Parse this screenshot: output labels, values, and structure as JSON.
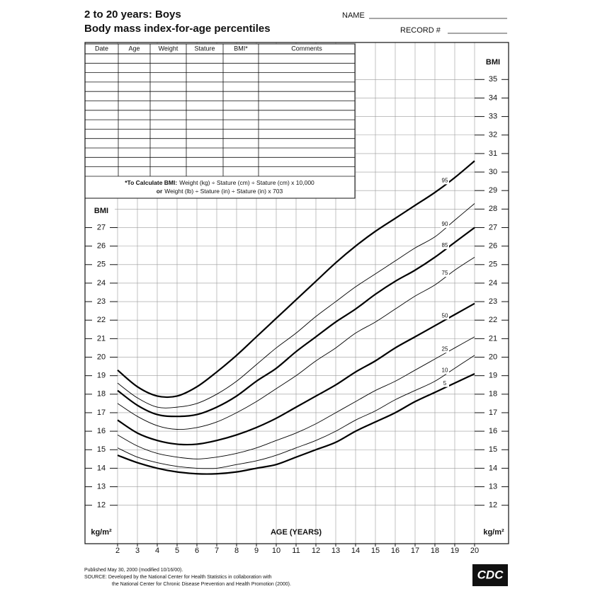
{
  "header": {
    "name_label": "NAME",
    "record_label": "RECORD #"
  },
  "table": {
    "columns": [
      "Date",
      "Age",
      "Weight",
      "Stature",
      "BMI*",
      "Comments"
    ],
    "note": [
      [
        "*To Calculate BMI:",
        "Weight (kg) ÷ Stature (cm) ÷ Stature (cm) x 10,000"
      ],
      [
        "or",
        "Weight (lb) ÷ Stature (in) ÷ Stature (in) x 703"
      ]
    ]
  },
  "footer": [
    "Published May 30, 2000 (modified 10/16/00).",
    "SOURCE: Developed by the National Center for Health Statistics in collaboration with",
    "the National Center for Chronic Disease Prevention and Health Promotion (2000)."
  ],
  "logo": "CDC",
  "chart_data": {
    "type": "line",
    "title": "2 to 20 years: Boys",
    "subtitle": "Body mass index-for-age percentiles",
    "x_label": "AGE (YEARS)",
    "y_label": "BMI",
    "y_unit": "kg/m²",
    "x": [
      2,
      3,
      4,
      5,
      6,
      7,
      8,
      9,
      10,
      11,
      12,
      13,
      14,
      15,
      16,
      17,
      18,
      19,
      20
    ],
    "xlim": [
      2,
      20
    ],
    "xticks": [
      2,
      3,
      4,
      5,
      6,
      7,
      8,
      9,
      10,
      11,
      12,
      13,
      14,
      15,
      16,
      17,
      18,
      19,
      20
    ],
    "ylim": [
      10,
      37
    ],
    "yticks": [
      12,
      13,
      14,
      15,
      16,
      17,
      18,
      19,
      20,
      21,
      22,
      23,
      24,
      25,
      26,
      27
    ],
    "y2lim": [
      10,
      37
    ],
    "y2ticks": [
      12,
      13,
      14,
      15,
      16,
      17,
      18,
      19,
      20,
      21,
      22,
      23,
      24,
      25,
      26,
      27,
      28,
      29,
      30,
      31,
      32,
      33,
      34,
      35
    ],
    "grid": true,
    "series": [
      {
        "name": "95",
        "color": "#000000",
        "line_width": 2.2,
        "values": [
          19.3,
          18.4,
          17.9,
          17.9,
          18.4,
          19.2,
          20.1,
          21.1,
          22.1,
          23.1,
          24.1,
          25.1,
          26.0,
          26.8,
          27.5,
          28.2,
          28.9,
          29.7,
          30.6
        ]
      },
      {
        "name": "90",
        "color": "#000000",
        "line_width": 0.9,
        "values": [
          18.6,
          17.8,
          17.3,
          17.3,
          17.5,
          18.0,
          18.7,
          19.6,
          20.5,
          21.3,
          22.2,
          23.0,
          23.8,
          24.5,
          25.2,
          25.9,
          26.5,
          27.4,
          28.3
        ]
      },
      {
        "name": "85",
        "color": "#000000",
        "line_width": 2.2,
        "values": [
          18.2,
          17.4,
          16.9,
          16.8,
          16.9,
          17.3,
          17.9,
          18.7,
          19.4,
          20.3,
          21.1,
          21.9,
          22.6,
          23.4,
          24.1,
          24.7,
          25.4,
          26.2,
          27.0
        ]
      },
      {
        "name": "75",
        "color": "#000000",
        "line_width": 0.9,
        "values": [
          17.5,
          16.8,
          16.3,
          16.1,
          16.2,
          16.5,
          17.0,
          17.6,
          18.3,
          19.0,
          19.8,
          20.5,
          21.3,
          21.9,
          22.6,
          23.3,
          23.9,
          24.7,
          25.4
        ]
      },
      {
        "name": "50",
        "color": "#000000",
        "line_width": 2.2,
        "values": [
          16.6,
          15.9,
          15.5,
          15.3,
          15.3,
          15.5,
          15.8,
          16.2,
          16.7,
          17.3,
          17.9,
          18.5,
          19.2,
          19.8,
          20.5,
          21.1,
          21.7,
          22.3,
          22.9
        ]
      },
      {
        "name": "25",
        "color": "#000000",
        "line_width": 0.9,
        "values": [
          15.8,
          15.2,
          14.8,
          14.6,
          14.5,
          14.6,
          14.8,
          15.1,
          15.5,
          15.9,
          16.4,
          17.0,
          17.6,
          18.2,
          18.7,
          19.3,
          19.9,
          20.5,
          21.1
        ]
      },
      {
        "name": "10",
        "color": "#000000",
        "line_width": 0.9,
        "values": [
          15.1,
          14.6,
          14.3,
          14.1,
          14.0,
          14.0,
          14.2,
          14.4,
          14.7,
          15.1,
          15.5,
          16.0,
          16.6,
          17.1,
          17.7,
          18.2,
          18.7,
          19.4,
          20.1
        ]
      },
      {
        "name": "5",
        "color": "#000000",
        "line_width": 2.2,
        "values": [
          14.7,
          14.3,
          14.0,
          13.8,
          13.7,
          13.7,
          13.8,
          14.0,
          14.2,
          14.6,
          15.0,
          15.4,
          16.0,
          16.5,
          17.0,
          17.6,
          18.1,
          18.6,
          19.1
        ]
      }
    ]
  }
}
